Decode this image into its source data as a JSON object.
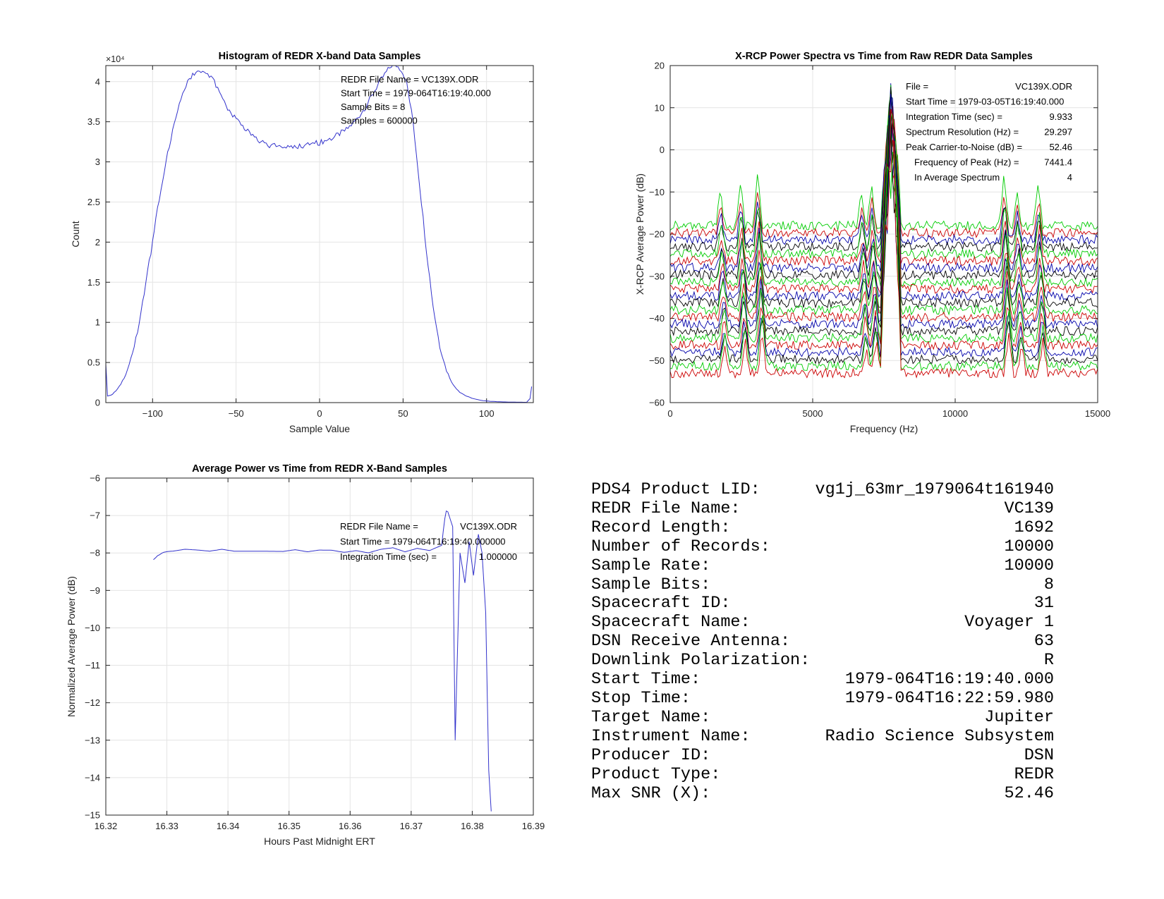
{
  "chart_data": [
    {
      "type": "line",
      "title": "Histogram of REDR X-band Data Samples",
      "xlabel": "Sample Value",
      "ylabel": "Count",
      "y_multiplier": "×10⁴",
      "xlim": [
        -128,
        128
      ],
      "ylim": [
        0,
        42000
      ],
      "xticks": [
        -100,
        -50,
        0,
        50,
        100
      ],
      "yticks": [
        0,
        5000,
        10000,
        15000,
        20000,
        25000,
        30000,
        35000,
        40000
      ],
      "yticklabels": [
        "0",
        "0.5",
        "1",
        "1.5",
        "2",
        "2.5",
        "3",
        "3.5",
        "4"
      ],
      "grid": true,
      "color": "#3333cc",
      "annotations": [
        "REDR File Name = VC139X.ODR",
        "Start Time = 1979-064T16:19:40.000",
        "Sample Bits = 8",
        "Samples = 600000"
      ],
      "x": [
        -128,
        -127,
        -124,
        -120,
        -116,
        -112,
        -108,
        -104,
        -100,
        -96,
        -92,
        -88,
        -84,
        -80,
        -76,
        -73,
        -70,
        -67,
        -64,
        -62,
        -60,
        -56,
        -52,
        -48,
        -44,
        -40,
        -36,
        -32,
        -28,
        -24,
        -20,
        -16,
        -12,
        -8,
        -4,
        0,
        4,
        8,
        12,
        16,
        20,
        24,
        28,
        32,
        36,
        40,
        43,
        46,
        49,
        52,
        56,
        60,
        64,
        68,
        72,
        76,
        80,
        84,
        88,
        92,
        96,
        100,
        104,
        108,
        112,
        116,
        120,
        124,
        126,
        127
      ],
      "series": [
        {
          "values": [
            5000,
            800,
            1000,
            2000,
            3500,
            6000,
            10000,
            15000,
            20000,
            25500,
            30000,
            34000,
            37000,
            39500,
            40800,
            41000,
            41200,
            40800,
            40200,
            39500,
            38500,
            37000,
            35800,
            34800,
            34000,
            33500,
            32700,
            32200,
            32000,
            31800,
            31900,
            32000,
            32000,
            32100,
            32300,
            32400,
            32700,
            33000,
            33500,
            34000,
            34800,
            35800,
            37000,
            38500,
            40000,
            41200,
            42000,
            42000,
            41500,
            40000,
            35000,
            27000,
            19000,
            12000,
            7000,
            4000,
            2200,
            1300,
            800,
            500,
            300,
            200,
            150,
            100,
            80,
            60,
            50,
            40,
            500,
            2000
          ]
        }
      ]
    },
    {
      "type": "line",
      "title": "X-RCP Power Spectra vs Time from Raw REDR Data Samples",
      "xlabel": "Frequency (Hz)",
      "ylabel": "X-RCP Average Power (dB)",
      "xlim": [
        0,
        15000
      ],
      "ylim": [
        -60,
        20
      ],
      "xticks": [
        0,
        5000,
        10000,
        15000
      ],
      "yticks": [
        -60,
        -50,
        -40,
        -30,
        -20,
        -10,
        0,
        10,
        20
      ],
      "grid": true,
      "annotation_rows": [
        {
          "label": "File =",
          "value": "VC139X.ODR"
        },
        {
          "label": "Start Time = 1979-03-05T16:19:40.000",
          "value": ""
        },
        {
          "label": "Integration Time (sec) =",
          "value": "9.933"
        },
        {
          "label": "Spectrum Resolution (Hz) =",
          "value": "29.297"
        },
        {
          "label": "Peak Carrier-to-Noise (dB) =",
          "value": "52.46"
        },
        {
          "label": "Frequency of Peak (Hz) =",
          "value": "7441.4"
        },
        {
          "label": "In Average Spectrum",
          "value": "4"
        }
      ],
      "trace_count": 22,
      "trace_colors": [
        "#00cc00",
        "#cc0000",
        "#0000aa",
        "#000000"
      ],
      "baseline_top_db": -18,
      "baseline_bottom_db": -53,
      "peak_db": 16,
      "carrier_band_hz": [
        7400,
        8100
      ],
      "side_peaks_hz": [
        1850,
        2550,
        3150,
        6800,
        7150,
        11800,
        12250,
        13000
      ]
    },
    {
      "type": "line",
      "title": "Average Power vs Time from REDR X-Band Samples",
      "xlabel": "Hours Past Midnight ERT",
      "ylabel": "Normalized Average Power (dB)",
      "xlim": [
        16.32,
        16.39
      ],
      "ylim": [
        -15,
        -6
      ],
      "xticks": [
        16.32,
        16.33,
        16.34,
        16.35,
        16.36,
        16.37,
        16.38,
        16.39
      ],
      "yticks": [
        -15,
        -14,
        -13,
        -12,
        -11,
        -10,
        -9,
        -8,
        -7,
        -6
      ],
      "grid": true,
      "color": "#3333cc",
      "annotation_rows": [
        {
          "label": "REDR File Name =",
          "value": "VC139X.ODR"
        },
        {
          "label": "Start Time = 1979-064T16:19:40.000000",
          "value": ""
        },
        {
          "label": "Integration Time (sec) =",
          "value": "1.000000"
        }
      ],
      "x": [
        16.3278,
        16.3285,
        16.3295,
        16.331,
        16.333,
        16.335,
        16.337,
        16.339,
        16.341,
        16.343,
        16.345,
        16.347,
        16.349,
        16.351,
        16.353,
        16.355,
        16.357,
        16.359,
        16.361,
        16.363,
        16.365,
        16.367,
        16.369,
        16.371,
        16.373,
        16.375,
        16.376,
        16.3768,
        16.3772,
        16.378,
        16.3788,
        16.3795,
        16.3802,
        16.381,
        16.3816,
        16.3822,
        16.3827,
        16.3831
      ],
      "series": [
        {
          "values": [
            -8.2,
            -8.05,
            -8.0,
            -7.95,
            -7.9,
            -7.92,
            -7.95,
            -7.9,
            -7.95,
            -7.95,
            -7.95,
            -7.95,
            -7.95,
            -7.9,
            -7.95,
            -7.9,
            -7.9,
            -7.95,
            -7.9,
            -7.95,
            -7.85,
            -7.8,
            -7.9,
            -7.8,
            -7.85,
            -7.7,
            -6.9,
            -7.3,
            -13.0,
            -8.0,
            -8.8,
            -7.7,
            -8.6,
            -7.5,
            -8.0,
            -9.6,
            -13.8,
            -14.9
          ]
        }
      ]
    }
  ],
  "product_info": [
    {
      "label": "PDS4 Product LID:",
      "value": "vg1j_63mr_1979064t161940"
    },
    {
      "label": "REDR File Name:",
      "value": "VC139"
    },
    {
      "label": "Record Length:",
      "value": "1692"
    },
    {
      "label": "Number of Records:",
      "value": "10000"
    },
    {
      "label": "Sample Rate:",
      "value": "10000"
    },
    {
      "label": "Sample Bits:",
      "value": "8"
    },
    {
      "label": "Spacecraft ID:",
      "value": "31"
    },
    {
      "label": "Spacecraft Name:",
      "value": "Voyager 1"
    },
    {
      "label": "DSN Receive Antenna:",
      "value": "63"
    },
    {
      "label": "Downlink Polarization:",
      "value": "R"
    },
    {
      "label": "Start Time:",
      "value": "1979-064T16:19:40.000"
    },
    {
      "label": "Stop Time:",
      "value": "1979-064T16:22:59.980"
    },
    {
      "label": "Target Name:",
      "value": "Jupiter"
    },
    {
      "label": "Instrument Name:",
      "value": "Radio Science Subsystem"
    },
    {
      "label": "Producer ID:",
      "value": "DSN"
    },
    {
      "label": "Product Type:",
      "value": "REDR"
    },
    {
      "label": "Max SNR (X):",
      "value": "52.46"
    }
  ]
}
